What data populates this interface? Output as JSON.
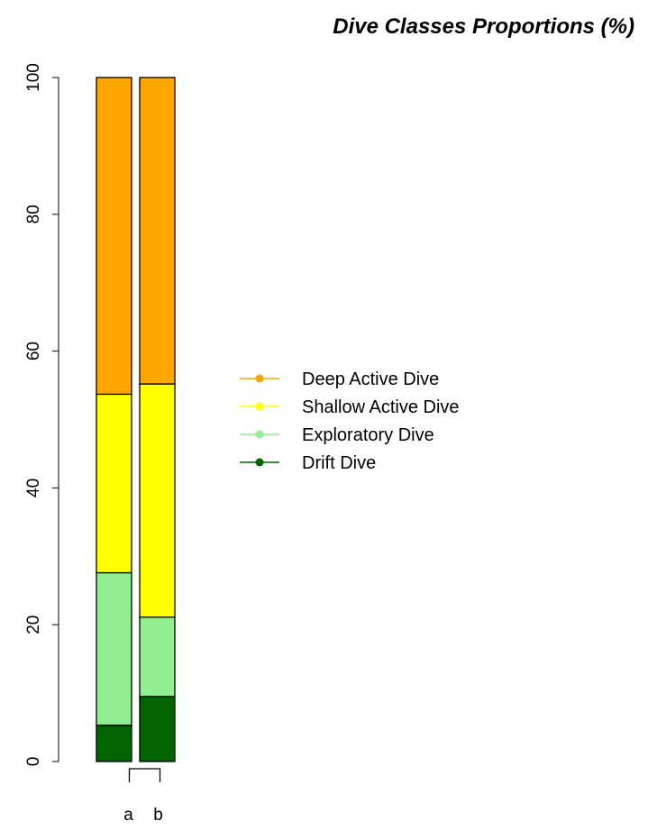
{
  "chart_data": {
    "type": "bar",
    "stacked": true,
    "title": "Dive Classes Proportions (%)",
    "xlabel": "",
    "ylabel": "",
    "categories": [
      "a",
      "b"
    ],
    "ylim": [
      0,
      100
    ],
    "yticks": [
      0,
      20,
      40,
      60,
      80,
      100
    ],
    "series": [
      {
        "name": "Drift Dive",
        "color": "#006400",
        "values": [
          5.3,
          9.5
        ]
      },
      {
        "name": "Exploratory Dive",
        "color": "#90EE90",
        "values": [
          22.3,
          11.6
        ]
      },
      {
        "name": "Shallow Active Dive",
        "color": "#FFFF00",
        "values": [
          26.1,
          34.1
        ]
      },
      {
        "name": "Deep Active Dive",
        "color": "#FFA500",
        "values": [
          46.3,
          44.8
        ]
      }
    ],
    "legend_order": [
      "Deep Active Dive",
      "Shallow Active Dive",
      "Exploratory Dive",
      "Drift Dive"
    ],
    "legend_position": "right",
    "grid": false,
    "bracket": {
      "groups": [
        "a",
        "b"
      ]
    }
  }
}
